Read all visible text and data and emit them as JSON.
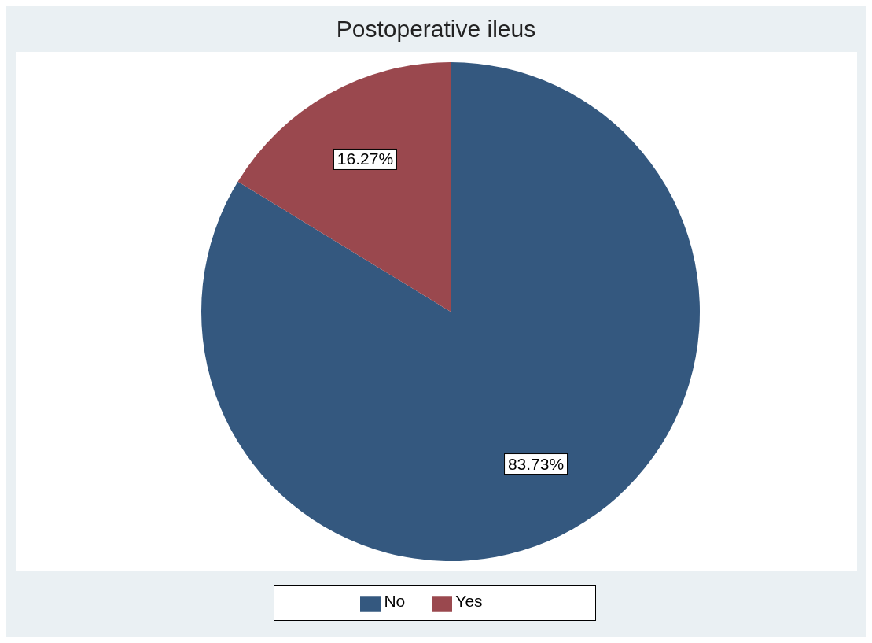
{
  "chart_data": {
    "type": "pie",
    "title": "Postoperative ileus",
    "categories": [
      "No",
      "Yes"
    ],
    "values": [
      83.73,
      16.27
    ],
    "colors": [
      "#34587f",
      "#9a484e"
    ],
    "value_labels": [
      "83.73%",
      "16.27%"
    ],
    "legend": "bottom"
  }
}
